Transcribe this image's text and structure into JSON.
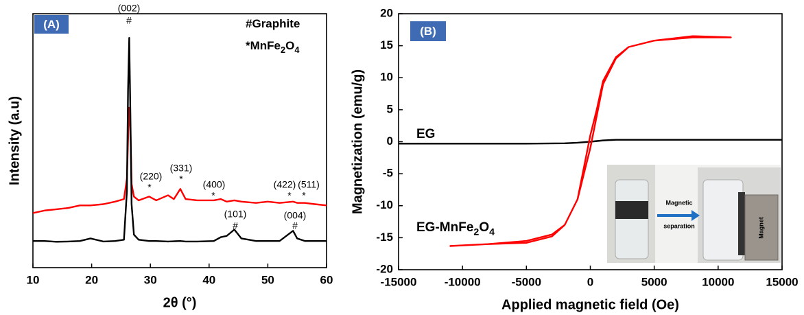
{
  "chart_data": [
    {
      "type": "line",
      "panel_label": "(A)",
      "xlabel": "2θ (°)",
      "ylabel": "Intensity (a.u)",
      "xlim": [
        10,
        60
      ],
      "xticks": [
        10,
        20,
        30,
        40,
        50,
        60
      ],
      "ylim": [
        0,
        100
      ],
      "x": [
        10,
        12,
        14,
        16,
        18,
        19.8,
        22,
        24,
        25.5,
        26,
        26.2,
        26.4,
        26.6,
        26.8,
        27.2,
        28,
        29.8,
        31,
        33,
        34,
        35.1,
        36,
        38,
        40.8,
        42,
        43,
        44.3,
        45.5,
        48,
        50,
        52,
        54.3,
        55,
        56.3,
        58,
        60
      ],
      "series": [
        {
          "color": "#ff0000",
          "values": [
            21.5,
            22.5,
            23,
            23.5,
            24.5,
            24.5,
            25,
            26,
            27,
            35,
            50,
            63,
            55,
            33,
            28,
            26.5,
            28,
            26.5,
            28.5,
            27,
            31,
            27,
            26.5,
            26.5,
            27,
            26,
            26.5,
            26,
            25.5,
            26,
            25.5,
            26,
            25.5,
            25.5,
            25,
            24.5
          ]
        },
        {
          "color": "#000000",
          "values": [
            10.5,
            10.5,
            10.2,
            10.3,
            10.5,
            11.5,
            10.3,
            10.5,
            11,
            30,
            70,
            90.5,
            60,
            25,
            13,
            11,
            10.5,
            10.5,
            10.3,
            10.4,
            10.5,
            10.3,
            10.3,
            10.5,
            12,
            12.5,
            15,
            11.5,
            10.5,
            10.5,
            10.5,
            14.5,
            11.5,
            10.5,
            10.5,
            10.5
          ]
        }
      ],
      "annotations": [
        "(002)",
        "#",
        "(220)",
        "*",
        "(331)",
        "*",
        "(400)",
        "*",
        "(422)",
        "*",
        "(511)",
        "*",
        "(101)",
        "#",
        "(004)",
        "#"
      ],
      "legend_text": [
        [
          "#",
          "Graphite"
        ],
        [
          "*",
          "MnFe",
          "2",
          "O",
          "4"
        ]
      ]
    },
    {
      "type": "line",
      "panel_label": "(B)",
      "xlabel": "Applied magnetic field (Oe)",
      "ylabel": "Magnetization (emu/g)",
      "xlim": [
        -15000,
        15000
      ],
      "xticks": [
        -15000,
        -10000,
        -5000,
        0,
        5000,
        10000,
        15000
      ],
      "ylim": [
        -20,
        20
      ],
      "yticks": [
        -20,
        -15,
        -10,
        -5,
        0,
        5,
        10,
        15,
        20
      ],
      "series": [
        {
          "color": "#000000",
          "x": [
            -15000,
            -10000,
            -5000,
            -2000,
            -1000,
            0,
            1000,
            2000,
            5000,
            10000,
            15000
          ],
          "values": [
            -0.3,
            -0.3,
            -0.3,
            -0.25,
            -0.15,
            0,
            0.2,
            0.3,
            0.3,
            0.3,
            0.3
          ]
        },
        {
          "color": "#ff0000",
          "x": [
            -11000,
            -8000,
            -5000,
            -3000,
            -2000,
            -1000,
            -500,
            0,
            200,
            500,
            1000,
            2000,
            3000,
            5000,
            8000,
            11000,
            11000,
            8000,
            5000,
            3000,
            2000,
            1000,
            500,
            0,
            -200,
            -500,
            -1000,
            -2000,
            -3000,
            -5000,
            -8000,
            -11000
          ],
          "values": [
            -16.3,
            -16,
            -15.5,
            -14.5,
            -13,
            -9,
            -5,
            -1,
            1,
            4,
            9,
            13,
            14.8,
            15.8,
            16.3,
            16.3,
            16.3,
            16.5,
            15.8,
            14.8,
            13.2,
            9.5,
            5,
            1,
            -1,
            -4,
            -9,
            -13,
            -14.8,
            -15.8,
            -16,
            -16.3
          ]
        }
      ],
      "annotations": [
        [
          "EG"
        ],
        [
          "EG-MnFe",
          "2",
          "O",
          "4"
        ]
      ],
      "inset_text": [
        "Magnetic",
        "separation",
        "Magnet"
      ]
    }
  ]
}
